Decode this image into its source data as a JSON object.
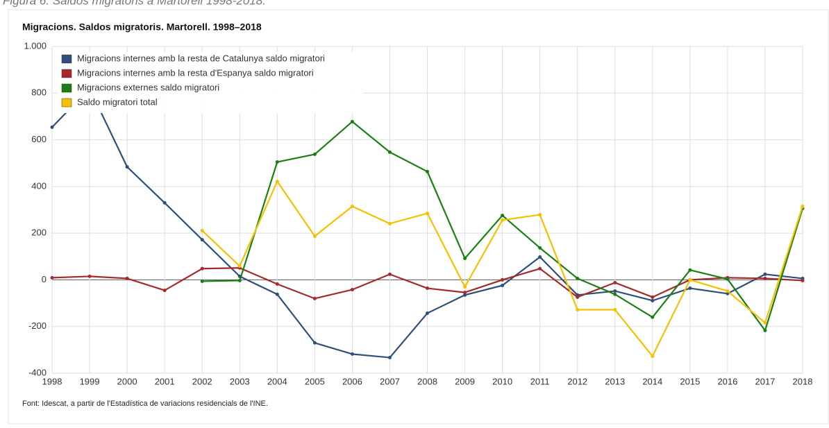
{
  "figure_caption": "Figura 6. Saldos migratoris a Martorell 1998-2018.",
  "source": "Font: Idescat, a partir de l'Estadística de variacions residencials de l'INE.",
  "chart_data": {
    "type": "line",
    "title": "Migracions. Saldos migratoris. Martorell. 1998–2018",
    "x": [
      1998,
      1999,
      2000,
      2001,
      2002,
      2003,
      2004,
      2005,
      2006,
      2007,
      2008,
      2009,
      2010,
      2011,
      2012,
      2013,
      2014,
      2015,
      2016,
      2017,
      2018
    ],
    "xlim": [
      1998,
      2018
    ],
    "ylim": [
      -400,
      1000
    ],
    "yticks": [
      -400,
      -200,
      0,
      200,
      400,
      600,
      800,
      {
        "value": 1000,
        "label": "1.000"
      }
    ],
    "grid": true,
    "legend": "top-left",
    "series": [
      {
        "name": "Migracions internes amb la resta de Catalunya saldo migratori",
        "color": "#2f4e7a",
        "values": [
          654,
          820,
          484,
          330,
          172,
          15,
          -62,
          -270,
          -318,
          -333,
          -143,
          -65,
          -24,
          98,
          -65,
          -48,
          -89,
          -36,
          -59,
          24,
          6
        ]
      },
      {
        "name": "Migracions internes amb la resta d'Espanya saldo migratori",
        "color": "#a52a2a",
        "values": [
          9,
          15,
          6,
          -45,
          48,
          51,
          -18,
          -80,
          -42,
          24,
          -36,
          -54,
          0,
          48,
          -74,
          -12,
          -74,
          0,
          9,
          6,
          -3
        ]
      },
      {
        "name": "Migracions externes saldo migratori",
        "color": "#1a7f12",
        "values": [
          null,
          null,
          null,
          null,
          -6,
          -3,
          505,
          538,
          678,
          547,
          464,
          92,
          276,
          137,
          6,
          -62,
          -160,
          42,
          3,
          -217,
          306
        ]
      },
      {
        "name": "Saldo migratori total",
        "color": "#f5c000",
        "values": [
          null,
          null,
          null,
          null,
          211,
          59,
          422,
          187,
          315,
          241,
          285,
          -30,
          256,
          279,
          -128,
          -128,
          -327,
          0,
          -48,
          -184,
          315
        ]
      }
    ]
  }
}
